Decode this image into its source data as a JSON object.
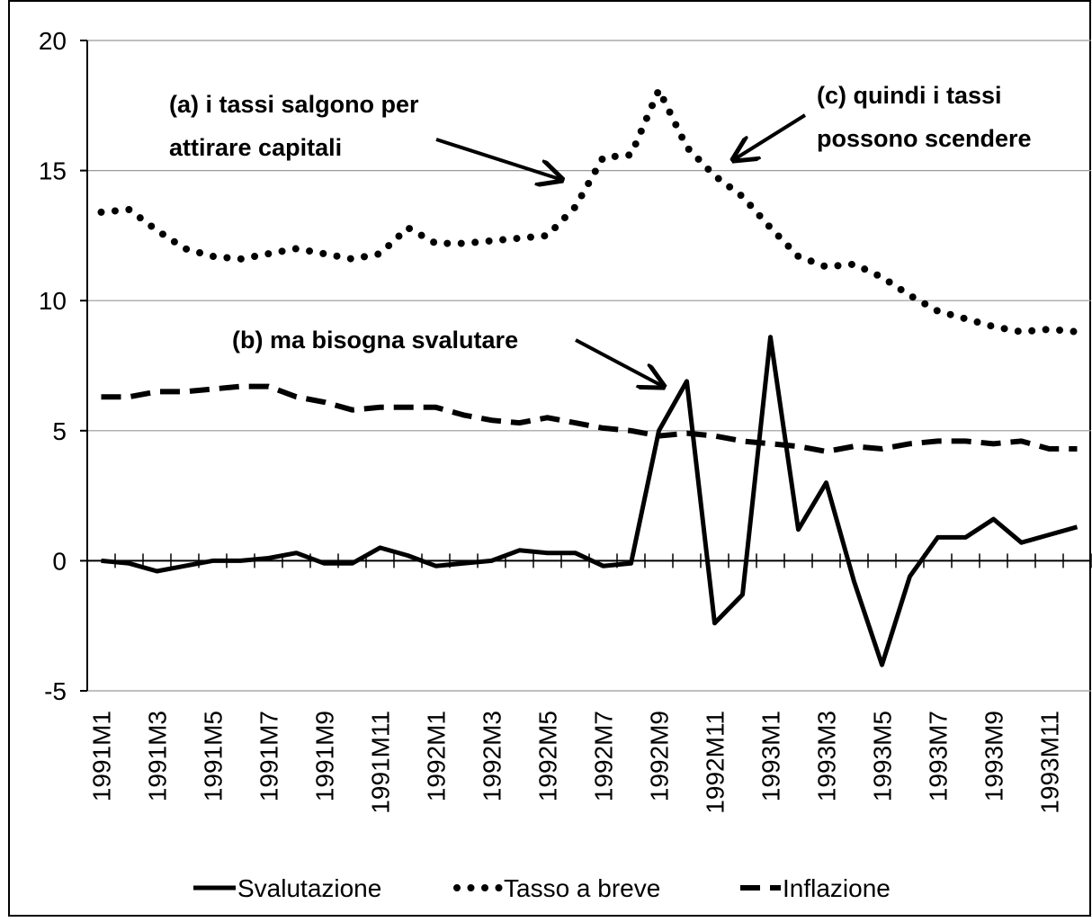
{
  "chart_data": {
    "type": "line",
    "categories": [
      "1991M1",
      null,
      "1991M3",
      null,
      "1991M5",
      null,
      "1991M7",
      null,
      "1991M9",
      null,
      "1991M11",
      null,
      "1992M1",
      null,
      "1992M3",
      null,
      "1992M5",
      null,
      "1992M7",
      null,
      "1992M9",
      null,
      "1992M11",
      null,
      "1993M1",
      null,
      "1993M3",
      null,
      "1993M5",
      null,
      "1993M7",
      null,
      "1993M9",
      null,
      "1993M11",
      null
    ],
    "series": [
      {
        "name": "Svalutazione",
        "color": "#000000",
        "line_style": "solid",
        "values": [
          0,
          -0.1,
          -0.4,
          -0.2,
          0,
          0,
          0.1,
          0.3,
          -0.1,
          -0.1,
          0.5,
          0.2,
          -0.2,
          -0.1,
          0,
          0.4,
          0.3,
          0.3,
          -0.2,
          -0.1,
          5,
          6.9,
          -2.4,
          -1.3,
          8.6,
          1.2,
          3.0,
          -0.8,
          -4.0,
          -0.6,
          0.9,
          0.9,
          1.6,
          0.7,
          1.0,
          1.3
        ]
      },
      {
        "name": "Tasso a breve",
        "color": "#000000",
        "line_style": "dotted",
        "values": [
          13.4,
          13.5,
          12.7,
          12.0,
          11.7,
          11.6,
          11.8,
          12.0,
          11.8,
          11.6,
          11.8,
          12.8,
          12.2,
          12.2,
          12.3,
          12.4,
          12.5,
          13.6,
          15.5,
          15.6,
          18.1,
          15.9,
          14.8,
          14.0,
          12.8,
          11.7,
          11.3,
          11.4,
          10.9,
          10.2,
          9.6,
          9.3,
          9.0,
          8.8,
          8.9,
          8.8
        ]
      },
      {
        "name": "Inflazione",
        "color": "#000000",
        "line_style": "dashed",
        "values": [
          6.3,
          6.3,
          6.5,
          6.5,
          6.6,
          6.7,
          6.7,
          6.3,
          6.1,
          5.8,
          5.9,
          5.9,
          5.9,
          5.6,
          5.4,
          5.3,
          5.5,
          5.3,
          5.1,
          5.0,
          4.8,
          4.9,
          4.8,
          4.6,
          4.5,
          4.4,
          4.2,
          4.4,
          4.3,
          4.5,
          4.6,
          4.6,
          4.5,
          4.6,
          4.3,
          4.3
        ]
      }
    ],
    "ylim": [
      -5,
      20
    ],
    "yticks": [
      -5,
      0,
      5,
      10,
      15,
      20
    ],
    "grid": true,
    "legend": "bottom",
    "annotations": [
      {
        "lines": [
          "(a) i tassi salgono per",
          "attirare capitali"
        ]
      },
      {
        "lines": [
          "(b) ma bisogna svalutare"
        ]
      },
      {
        "lines": [
          "(c) quindi i tassi",
          "possono scendere"
        ]
      }
    ]
  }
}
